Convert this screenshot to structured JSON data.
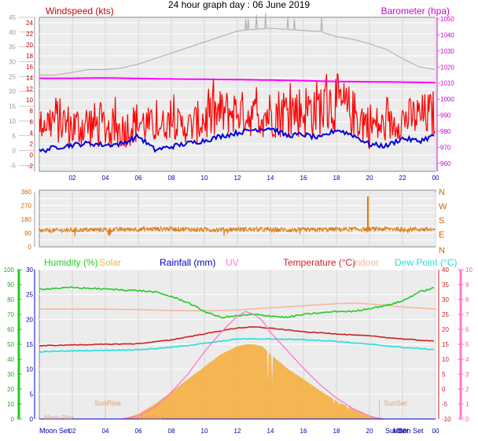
{
  "title": "24 hour graph day : 06 June 2019",
  "colors": {
    "wind_speed": "#ff0000",
    "wind_avg": "#0000dd",
    "wind_axis": "#cc0000",
    "barometer": "#ff00ff",
    "barometer_axis": "#cc00cc",
    "grey_trace": "#b4b4b4",
    "wind_dir": "#dd7a10",
    "humidity": "#22cc22",
    "solar": "#f4b24a",
    "rainfall": "#0000cc",
    "uv": "#ff77cc",
    "temperature": "#cc2222",
    "indoor": "#f4b8a0",
    "dew_point": "#22dddd",
    "plot_bg": "#ececec"
  },
  "chart_data": [
    {
      "type": "line",
      "panel": "wind",
      "title": "24 hour graph day : 06 June 2019",
      "ylabel_left": "Windspeed (kts)",
      "ylabel_right": "Barometer (hpa)",
      "x_ticks": [
        "02",
        "04",
        "06",
        "08",
        "10",
        "12",
        "14",
        "16",
        "18",
        "20",
        "22",
        "00"
      ],
      "left_axis_outer_ticks": [
        "-5",
        "0",
        "5",
        "10",
        "15",
        "20",
        "25",
        "30",
        "35",
        "40",
        "45"
      ],
      "left_axis_inner_ticks": [
        "-2",
        "0",
        "2",
        "4",
        "6",
        "8",
        "10",
        "12",
        "14",
        "16",
        "18",
        "20",
        "22",
        "24"
      ],
      "right_axis_ticks": [
        "960",
        "970",
        "980",
        "990",
        "1000",
        "1010",
        "1020",
        "1030",
        "1040",
        "1050"
      ],
      "xlim_hours": [
        0,
        24
      ],
      "ylim_kts": [
        -3,
        25
      ],
      "barometer_range_hpa": [
        955,
        1051
      ],
      "grid": true,
      "series": [
        {
          "name": "",
          "kind": "gust",
          "color": "#ff0000",
          "x": [
            0,
            1,
            2,
            3,
            4,
            5,
            6,
            7,
            8,
            9,
            10,
            11,
            12,
            13,
            14,
            15,
            16,
            17,
            18,
            19,
            20,
            21,
            22,
            23,
            24
          ],
          "min": [
            3,
            2,
            1,
            1,
            1,
            1,
            2,
            2,
            3,
            2,
            2,
            3,
            4,
            3,
            3,
            3,
            3,
            3,
            4,
            3,
            1,
            2,
            3,
            3,
            3
          ],
          "max": [
            8,
            11,
            9,
            10,
            9,
            8,
            10,
            8,
            9,
            8,
            11,
            12,
            12,
            11,
            12,
            13,
            13,
            14,
            15,
            12,
            10,
            8,
            10,
            11,
            12
          ]
        },
        {
          "name": "",
          "kind": "average",
          "color": "#0000dd",
          "x": [
            0,
            1,
            2,
            3,
            4,
            5,
            6,
            7,
            8,
            9,
            10,
            11,
            12,
            13,
            14,
            15,
            16,
            17,
            18,
            19,
            20,
            21,
            22,
            23,
            24
          ],
          "y": [
            0.6,
            1.4,
            1.8,
            2.1,
            1.8,
            2.0,
            3.4,
            0.9,
            1.5,
            2.1,
            2.6,
            3.4,
            4.0,
            4.6,
            4.9,
            3.5,
            3.7,
            3.0,
            4.6,
            3.6,
            1.9,
            1.6,
            3.0,
            2.5,
            3.6
          ]
        },
        {
          "name": "",
          "kind": "barometer",
          "color": "#ff00ff",
          "x": [
            0,
            2,
            4,
            6,
            8,
            10,
            12,
            14,
            16,
            18,
            20,
            22,
            24
          ],
          "y": [
            1013.0,
            1013.0,
            1013.2,
            1012.9,
            1012.6,
            1012.4,
            1012.2,
            1011.9,
            1011.5,
            1011.0,
            1010.8,
            1010.6,
            1010.3
          ]
        },
        {
          "name": "",
          "kind": "grey_trace",
          "color": "#b4b4b4",
          "x": [
            0,
            1,
            2,
            3,
            4,
            5,
            6,
            7,
            8,
            9,
            10,
            11,
            12,
            13,
            14,
            15,
            16,
            17,
            18,
            19,
            20,
            21,
            22,
            23,
            24
          ],
          "y": [
            14.5,
            14.5,
            15.0,
            15.5,
            15.5,
            15.8,
            16.5,
            17.5,
            18.5,
            19.5,
            20.5,
            21.5,
            22.5,
            22.8,
            23.0,
            22.8,
            22.6,
            22.4,
            21.5,
            21.0,
            20.2,
            19.2,
            17.5,
            16.0,
            15.5
          ]
        }
      ]
    },
    {
      "type": "line",
      "panel": "wind_direction",
      "left_axis_ticks": [
        "0",
        "90",
        "180",
        "270",
        "360"
      ],
      "right_axis_labels": [
        "N",
        "E",
        "S",
        "W",
        "N"
      ],
      "ylim_degrees": [
        0,
        360
      ],
      "grid": true,
      "series": [
        {
          "name": "",
          "color": "#dd7a10",
          "x": [
            0,
            2,
            4,
            6,
            8,
            10,
            12,
            14,
            16,
            18,
            19.8,
            20,
            22,
            24
          ],
          "y": [
            105,
            110,
            112,
            115,
            118,
            112,
            115,
            112,
            110,
            115,
            115,
            330,
            118,
            112
          ]
        }
      ]
    },
    {
      "type": "line",
      "panel": "climate",
      "legend": [
        "Humidity (%)",
        "Solar",
        "Rainfall (mm)",
        "UV",
        "Temperature (°C)",
        "Indoor",
        "Dew Point (°C)"
      ],
      "legend_placement": "top",
      "humidity_axis_ticks": [
        "0",
        "10",
        "20",
        "30",
        "40",
        "50",
        "60",
        "70",
        "80",
        "90",
        "100"
      ],
      "solar_rain_axis_ticks": [
        "0",
        "5",
        "10",
        "15",
        "20",
        "25",
        "30"
      ],
      "temperature_axis_ticks": [
        "-10",
        "-5",
        "0",
        "5",
        "10",
        "15",
        "20",
        "25",
        "30",
        "35",
        "40"
      ],
      "uv_axis_ticks": [
        "0",
        "1",
        "2",
        "3",
        "4",
        "5",
        "6",
        "7",
        "8",
        "9",
        "10"
      ],
      "x_ticks": [
        "02",
        "04",
        "06",
        "08",
        "10",
        "12",
        "14",
        "16",
        "18",
        "20",
        "22",
        "00"
      ],
      "annotations": [
        "Moon Set",
        "SunRise",
        "Moon Rise",
        "SunRise",
        "SunSet",
        "SunSet",
        "Moon Set"
      ],
      "grid": true,
      "series": [
        {
          "name": "Humidity (%)",
          "color": "#22cc22",
          "x": [
            0,
            2,
            4,
            6,
            7,
            8,
            9,
            10,
            11,
            12,
            13,
            14,
            15,
            16,
            17,
            18,
            19,
            20,
            21,
            22,
            23,
            24
          ],
          "y": [
            87,
            88,
            87,
            86,
            85,
            82,
            78,
            72,
            68,
            69,
            70,
            69,
            68,
            70,
            71,
            72,
            72,
            74,
            76,
            79,
            85,
            88
          ]
        },
        {
          "name": "Solar",
          "color": "#f4b24a",
          "x": [
            5.0,
            6,
            7,
            8,
            9,
            10,
            11,
            12,
            12.5,
            13,
            13.5,
            14,
            15,
            16,
            17,
            18,
            19,
            20,
            20.5,
            21.0
          ],
          "y": [
            0,
            1.0,
            3.0,
            5.4,
            8.0,
            10.5,
            13.0,
            14.6,
            15.0,
            15.0,
            14.6,
            13.0,
            10.2,
            8.0,
            5.7,
            3.6,
            2.0,
            0.7,
            0.3,
            0
          ]
        },
        {
          "name": "Rainfall (mm)",
          "color": "#0000cc",
          "x": [
            0,
            24
          ],
          "y": [
            0,
            0
          ]
        },
        {
          "name": "UV",
          "color": "#ff77cc",
          "x": [
            5.0,
            6,
            7,
            8,
            9,
            10,
            11,
            12,
            12.5,
            13,
            13.5,
            14,
            15,
            16,
            17,
            18,
            19,
            20,
            20.5,
            21.0
          ],
          "y": [
            0,
            0.2,
            0.8,
            1.8,
            3.0,
            4.5,
            5.8,
            6.9,
            7.2,
            7.0,
            6.6,
            5.8,
            4.6,
            3.4,
            2.3,
            1.4,
            0.7,
            0.2,
            0.05,
            0
          ]
        },
        {
          "name": "Temperature (°C)",
          "color": "#cc2222",
          "x": [
            0,
            2,
            4,
            6,
            8,
            10,
            11,
            12,
            13,
            14,
            15,
            16,
            18,
            20,
            22,
            24
          ],
          "y": [
            14.5,
            14.8,
            15.0,
            15.2,
            16.5,
            18.5,
            19.5,
            20.5,
            20.8,
            20.4,
            19.8,
            19.2,
            18.5,
            17.8,
            16.8,
            16.0
          ]
        },
        {
          "name": "Indoor",
          "color": "#f4b8a0",
          "x": [
            0,
            2,
            4,
            6,
            8,
            10,
            12,
            14,
            16,
            18,
            19,
            20,
            22,
            24
          ],
          "y": [
            26.8,
            26.8,
            26.8,
            26.6,
            26.3,
            26.2,
            26.5,
            27.2,
            27.9,
            28.6,
            28.8,
            28.5,
            27.5,
            26.8
          ]
        },
        {
          "name": "Dew Point (°C)",
          "color": "#22dddd",
          "x": [
            0,
            2,
            4,
            6,
            8,
            10,
            11,
            12,
            14,
            16,
            18,
            20,
            22,
            24
          ],
          "y": [
            12.5,
            12.8,
            13.0,
            13.2,
            14.0,
            15.3,
            16.0,
            16.8,
            16.8,
            16.6,
            16.0,
            15.0,
            14.0,
            13.2
          ]
        }
      ]
    }
  ]
}
